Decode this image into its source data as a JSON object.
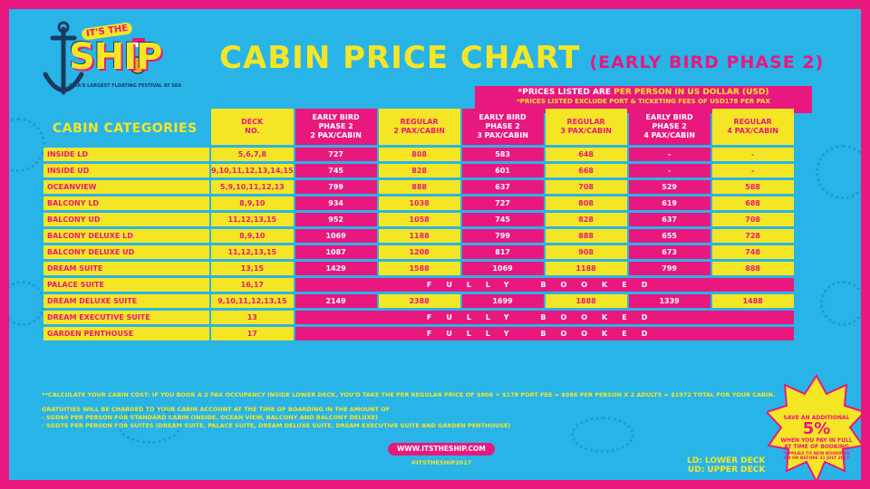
{
  "logo": {
    "its": "IT'S THE",
    "ship": "SHIP",
    "tagline": "ASIA'S LARGEST FLOATING FESTIVAL AT SEA"
  },
  "title": {
    "main": "CABIN PRICE CHART",
    "sub": "(EARLY BIRD PHASE 2)"
  },
  "price_note": {
    "line1_prefix": "*PRICES LISTED ARE ",
    "line1_highlight": "PER PERSON IN US DOLLAR (USD)",
    "line2": "*PRICES LISTED EXCLUDE PORT & TICKETING FEES OF USD178 PER PAX"
  },
  "categories_title": "CABIN CATEGORIES",
  "columns": [
    {
      "label1": "DECK",
      "label2": "NO.",
      "label3": ""
    },
    {
      "label1": "EARLY BIRD",
      "label2": "PHASE 2",
      "label3": "2 PAX/CABIN"
    },
    {
      "label1": "REGULAR",
      "label2": "2 PAX/CABIN",
      "label3": ""
    },
    {
      "label1": "EARLY BIRD",
      "label2": "PHASE 2",
      "label3": "3 PAX/CABIN"
    },
    {
      "label1": "REGULAR",
      "label2": "3 PAX/CABIN",
      "label3": ""
    },
    {
      "label1": "EARLY BIRD",
      "label2": "PHASE 2",
      "label3": "4 PAX/CABIN"
    },
    {
      "label1": "REGULAR",
      "label2": "4 PAX/CABIN",
      "label3": ""
    }
  ],
  "rows": [
    {
      "name": "INSIDE LD",
      "deck": "5,6,7,8",
      "v": [
        "727",
        "808",
        "583",
        "648",
        "-",
        "-"
      ]
    },
    {
      "name": "INSIDE UD",
      "deck": "9,10,11,12,13,14,15",
      "v": [
        "745",
        "828",
        "601",
        "668",
        "-",
        "-"
      ]
    },
    {
      "name": "OCEANVIEW",
      "deck": "5,9,10,11,12,13",
      "v": [
        "799",
        "888",
        "637",
        "708",
        "529",
        "588"
      ]
    },
    {
      "name": "BALCONY LD",
      "deck": "8,9,10",
      "v": [
        "934",
        "1038",
        "727",
        "808",
        "619",
        "688"
      ]
    },
    {
      "name": "BALCONY UD",
      "deck": "11,12,13,15",
      "v": [
        "952",
        "1058",
        "745",
        "828",
        "637",
        "708"
      ]
    },
    {
      "name": "BALCONY DELUXE LD",
      "deck": "8,9,10",
      "v": [
        "1069",
        "1188",
        "799",
        "888",
        "655",
        "728"
      ]
    },
    {
      "name": "BALCONY DELUXE UD",
      "deck": "11,12,13,15",
      "v": [
        "1087",
        "1208",
        "817",
        "908",
        "673",
        "748"
      ]
    },
    {
      "name": "DREAM SUITE",
      "deck": "13,15",
      "v": [
        "1429",
        "1588",
        "1069",
        "1188",
        "799",
        "888"
      ]
    },
    {
      "name": "PALACE SUITE",
      "deck": "16,17",
      "booked": "FULLY BOOKED"
    },
    {
      "name": "DREAM DELUXE SUITE",
      "deck": "9,10,11,12,13,15",
      "v": [
        "2149",
        "2388",
        "1699",
        "1888",
        "1339",
        "1488"
      ]
    },
    {
      "name": "DREAM EXECUTIVE SUITE",
      "deck": "13",
      "booked": "FULLY BOOKED"
    },
    {
      "name": "GARDEN PENTHOUSE",
      "deck": "17",
      "booked": "FULLY BOOKED"
    }
  ],
  "footnote": "**CALCULATE YOUR CABIN COST: IF YOU BOOK A 2 PAX OCCUPANCY INSIDE LOWER DECK, YOU'D TAKE THE PER REGULAR PRICE OF $808 + $178 PORT FEE = $986 PER PERSON X 2 ADULTS = $1972 TOTAL FOR YOUR CABIN.",
  "gratuities": {
    "line1": "GRATUITIES WILL BE CHARGED TO YOUR CABIN ACCOUNT AT THE TIME OF BOARDING IN THE AMOUNT OF",
    "line2": "- SGD60 PER PERSON FOR STANDARD CABIN (INSIDE, OCEAN VIEW, BALCONY AND BALCONY DELUXE)",
    "line3": "- SGD75 PER PERSON FOR SUITES (DREAM SUITE, PALACE SUITE, DREAM DELUXE SUITE, DREAM EXECUTIVE SUITE AND GARDEN PENTHOUSE)"
  },
  "url": "WWW.ITSTHESHIP.COM",
  "hashtag": "#ITSTHESHIP2017",
  "legend": {
    "ld": "LD: LOWER DECK",
    "ud": "UD: UPPER DECK"
  },
  "promo": {
    "l1": "SAVE AN ADDITIONAL",
    "l2": "5%",
    "l3a": "WHEN YOU PAY IN FULL",
    "l3b": "AT TIME OF BOOKING",
    "l4": "*APPLIES TO NEW BOOKINGS ON OR BEFORE 31 JULY 2017"
  },
  "colors": {
    "pink": "#e8187e",
    "yellow": "#f5e625",
    "blue": "#29b4e8"
  }
}
